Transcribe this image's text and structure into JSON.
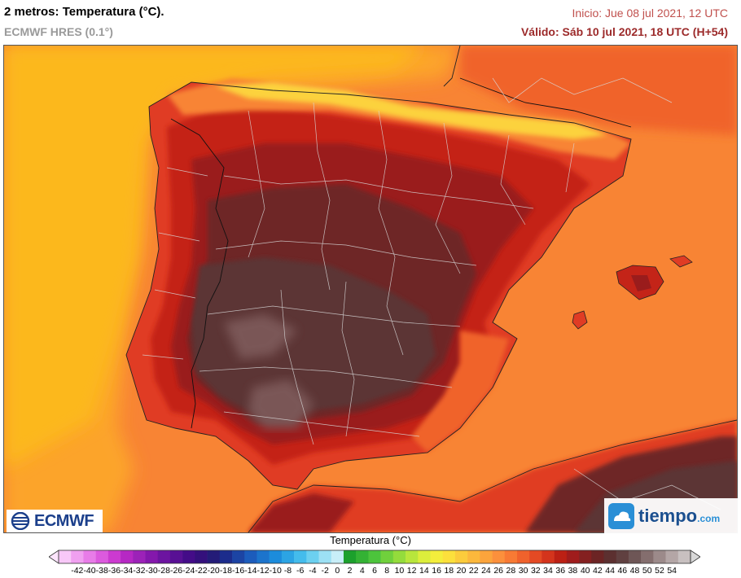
{
  "header": {
    "title": "2 metros: Temperatura (°C).",
    "model": "ECMWF HRES (0.1°)",
    "init": "Inicio: Jue 08 jul 2021, 12 UTC",
    "valid": "Válido: Sáb 10 jul 2021, 18 UTC (H+54)"
  },
  "logos": {
    "left": "ECMWF",
    "right": "tiempo",
    "right_suffix": ".com"
  },
  "legend": {
    "title": "Temperatura (°C)",
    "ticks": [
      "-42",
      "-40",
      "-38",
      "-36",
      "-34",
      "-32",
      "-30",
      "-28",
      "-26",
      "-24",
      "-22",
      "-20",
      "-18",
      "-16",
      "-14",
      "-12",
      "-10",
      "-8",
      "-6",
      "-4",
      "-2",
      "0",
      "2",
      "4",
      "6",
      "8",
      "10",
      "12",
      "14",
      "16",
      "18",
      "20",
      "22",
      "24",
      "26",
      "28",
      "30",
      "32",
      "34",
      "36",
      "38",
      "40",
      "42",
      "44",
      "46",
      "48",
      "50",
      "52",
      "54"
    ],
    "colors": [
      "#f8c8f8",
      "#f0a0f0",
      "#e87ce8",
      "#dc5ade",
      "#cc3ad0",
      "#b628c4",
      "#9c22b8",
      "#8418ac",
      "#6c14a0",
      "#581094",
      "#440c88",
      "#34107c",
      "#241c78",
      "#1c2c8c",
      "#1c44a4",
      "#1c5cbc",
      "#1c74cc",
      "#1c8cdc",
      "#2ca4e4",
      "#44bcec",
      "#6cd0f0",
      "#9ce0f4",
      "#c8eef8",
      "#1ca02c",
      "#34b234",
      "#4cc43c",
      "#70d03c",
      "#94dc3c",
      "#b8e63c",
      "#dcee3c",
      "#f4ee3c",
      "#fce03c",
      "#fccc3c",
      "#fcb83c",
      "#fca43c",
      "#fc903c",
      "#f87a34",
      "#f0622c",
      "#e44a24",
      "#d4341c",
      "#bc2014",
      "#a01c1c",
      "#842020",
      "#6c2424",
      "#5c3030",
      "#604040",
      "#6e5656",
      "#846e6e",
      "#9c8a8a",
      "#b4a6a6",
      "#c8c0c0"
    ]
  },
  "map": {
    "region": "Península Ibérica",
    "colors": {
      "sea_atlantic": "#fcb81c",
      "sea_med": "#f88434",
      "hot_1": "#f0642c",
      "hot_2": "#e03c24",
      "hot_3": "#c42418",
      "hot_4": "#9a1c1c",
      "hot_5": "#6e2828",
      "hot_6": "#5c3434",
      "hot_7": "#7a5656",
      "cool_mtn": "#fcd23c"
    }
  }
}
